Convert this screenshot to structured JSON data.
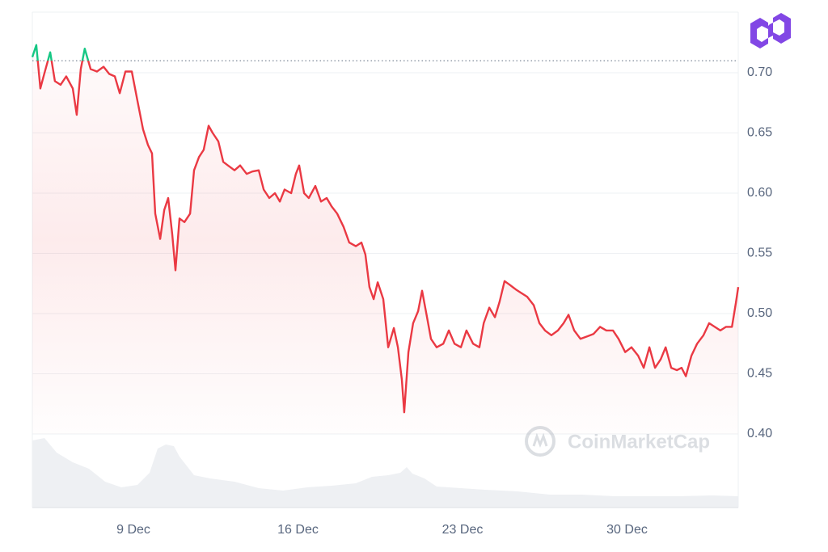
{
  "chart_data": {
    "type": "line",
    "watermark": "CoinMarketCap",
    "baseline": 0.71,
    "up_color": "#16c784",
    "down_color": "#ea3943",
    "grid": true,
    "xlim": [
      4.7,
      34.73
    ],
    "xticks": [
      {
        "value": 9,
        "label": "9 Dec"
      },
      {
        "value": 16,
        "label": "16 Dec"
      },
      {
        "value": 23,
        "label": "23 Dec"
      },
      {
        "value": 30,
        "label": "30 Dec"
      }
    ],
    "ylim": [
      0.4,
      0.75
    ],
    "yticks": [
      {
        "value": 0.4,
        "label": "0.40"
      },
      {
        "value": 0.45,
        "label": "0.45"
      },
      {
        "value": 0.5,
        "label": "0.50"
      },
      {
        "value": 0.55,
        "label": "0.55"
      },
      {
        "value": 0.6,
        "label": "0.60"
      },
      {
        "value": 0.65,
        "label": "0.65"
      },
      {
        "value": 0.7,
        "label": "0.70"
      }
    ],
    "x": [
      4.7,
      4.87,
      5.04,
      5.22,
      5.46,
      5.66,
      5.9,
      6.14,
      6.42,
      6.59,
      6.76,
      6.93,
      7.18,
      7.45,
      7.73,
      7.97,
      8.21,
      8.42,
      8.66,
      8.93,
      9.17,
      9.41,
      9.62,
      9.79,
      9.93,
      10.14,
      10.31,
      10.48,
      10.65,
      10.79,
      10.96,
      11.17,
      11.41,
      11.58,
      11.79,
      11.99,
      12.2,
      12.37,
      12.61,
      12.82,
      13.02,
      13.3,
      13.54,
      13.82,
      14.06,
      14.33,
      14.54,
      14.78,
      15.02,
      15.23,
      15.43,
      15.71,
      15.91,
      16.05,
      16.26,
      16.46,
      16.74,
      16.98,
      17.22,
      17.43,
      17.67,
      17.94,
      18.18,
      18.46,
      18.7,
      18.87,
      19.04,
      19.22,
      19.39,
      19.63,
      19.84,
      20.08,
      20.25,
      20.42,
      20.52,
      20.7,
      20.9,
      21.11,
      21.28,
      21.49,
      21.66,
      21.9,
      22.18,
      22.42,
      22.66,
      22.93,
      23.17,
      23.45,
      23.72,
      23.9,
      24.14,
      24.38,
      24.58,
      24.79,
      25.0,
      25.27,
      25.51,
      25.75,
      26.03,
      26.27,
      26.51,
      26.78,
      27.06,
      27.3,
      27.51,
      27.75,
      28.02,
      28.3,
      28.57,
      28.85,
      29.12,
      29.4,
      29.64,
      29.92,
      30.19,
      30.47,
      30.71,
      30.95,
      31.19,
      31.43,
      31.64,
      31.88,
      32.12,
      32.32,
      32.5,
      32.74,
      32.98,
      33.25,
      33.49,
      33.73,
      33.97,
      34.21,
      34.46,
      34.63,
      34.73
    ],
    "values": [
      0.713,
      0.723,
      0.687,
      0.7,
      0.717,
      0.693,
      0.69,
      0.697,
      0.687,
      0.665,
      0.703,
      0.72,
      0.703,
      0.701,
      0.705,
      0.699,
      0.697,
      0.683,
      0.701,
      0.701,
      0.677,
      0.653,
      0.64,
      0.633,
      0.583,
      0.562,
      0.586,
      0.596,
      0.566,
      0.536,
      0.579,
      0.576,
      0.583,
      0.619,
      0.63,
      0.636,
      0.656,
      0.65,
      0.643,
      0.626,
      0.623,
      0.619,
      0.623,
      0.616,
      0.618,
      0.619,
      0.603,
      0.596,
      0.6,
      0.593,
      0.603,
      0.6,
      0.616,
      0.623,
      0.6,
      0.596,
      0.606,
      0.593,
      0.596,
      0.589,
      0.583,
      0.572,
      0.559,
      0.556,
      0.559,
      0.549,
      0.522,
      0.512,
      0.526,
      0.512,
      0.472,
      0.488,
      0.472,
      0.445,
      0.418,
      0.468,
      0.492,
      0.502,
      0.519,
      0.497,
      0.479,
      0.472,
      0.475,
      0.486,
      0.475,
      0.472,
      0.486,
      0.475,
      0.472,
      0.492,
      0.505,
      0.497,
      0.51,
      0.527,
      0.524,
      0.52,
      0.517,
      0.514,
      0.507,
      0.492,
      0.486,
      0.482,
      0.486,
      0.492,
      0.499,
      0.486,
      0.479,
      0.481,
      0.483,
      0.489,
      0.486,
      0.486,
      0.479,
      0.468,
      0.472,
      0.465,
      0.455,
      0.472,
      0.455,
      0.462,
      0.472,
      0.455,
      0.453,
      0.455,
      0.448,
      0.465,
      0.475,
      0.482,
      0.492,
      0.489,
      0.486,
      0.489,
      0.489,
      0.509,
      0.522
    ]
  }
}
